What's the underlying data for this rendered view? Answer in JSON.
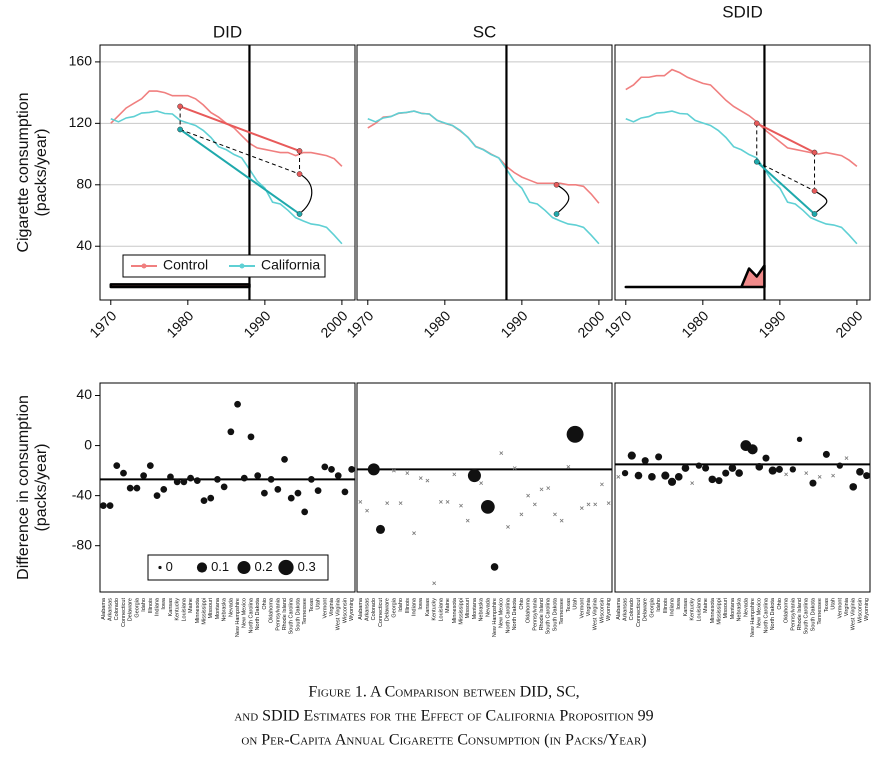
{
  "caption": [
    "Figure 1. A Comparison between DID, SC,",
    "and SDID Estimates for the Effect of California Proposition 99",
    "on Per-Capita Annual Cigarette Consumption (in Packs/Year)"
  ],
  "chart_data": [
    {
      "type": "line",
      "title": "DID",
      "ylabel": [
        "Cigarette consumption",
        "(packs/year)"
      ],
      "x": [
        1970,
        1971,
        1972,
        1973,
        1974,
        1975,
        1976,
        1977,
        1978,
        1979,
        1980,
        1981,
        1982,
        1983,
        1984,
        1985,
        1986,
        1987,
        1988,
        1989,
        1990,
        1991,
        1992,
        1993,
        1994,
        1995,
        1996,
        1997,
        1998,
        1999,
        2000
      ],
      "xlim": [
        1968.6,
        2001.7
      ],
      "xticks": [
        1970,
        1980,
        1990,
        2000
      ],
      "ylim": [
        5,
        171
      ],
      "yticks": [
        40,
        80,
        120,
        160
      ],
      "grid": true,
      "legend": "bottom-left",
      "series": [
        {
          "name": "Control",
          "color": "#f07f7f",
          "values": [
            120,
            125,
            130,
            133,
            136,
            141,
            141,
            140,
            138,
            138,
            138,
            136,
            132,
            127,
            124,
            120,
            117,
            112,
            107,
            104,
            103,
            102,
            101,
            101,
            99,
            101,
            101,
            100,
            99,
            97,
            92
          ]
        },
        {
          "name": "California",
          "color": "#5fd0d4",
          "values": [
            123,
            121,
            123.5,
            124.4,
            126.7,
            127.1,
            128,
            126.4,
            126.1,
            121.9,
            120.2,
            118.6,
            115.4,
            110.8,
            104.8,
            102.8,
            99.7,
            97.5,
            90.1,
            82.4,
            77.8,
            68.7,
            67.5,
            63.4,
            58.6,
            56.4,
            54.5,
            53.8,
            52.3,
            47.2,
            41.6
          ]
        }
      ],
      "event_x": 1988,
      "time_weights": [
        0.053,
        0.053,
        0.053,
        0.053,
        0.053,
        0.053,
        0.053,
        0.053,
        0.053,
        0.053,
        0.053,
        0.053,
        0.053,
        0.053,
        0.053,
        0.053,
        0.053,
        0.053,
        0.053
      ],
      "annotation": {
        "pre_x": 1979,
        "post_x": 1994.5,
        "control_pre": 131,
        "control_post": 102,
        "treated_pre": 116,
        "treated_post": 61,
        "counterfactual": 87
      }
    },
    {
      "type": "line",
      "title": "SC",
      "x": [
        1970,
        1971,
        1972,
        1973,
        1974,
        1975,
        1976,
        1977,
        1978,
        1979,
        1980,
        1981,
        1982,
        1983,
        1984,
        1985,
        1986,
        1987,
        1988,
        1989,
        1990,
        1991,
        1992,
        1993,
        1994,
        1995,
        1996,
        1997,
        1998,
        1999,
        2000
      ],
      "xlim": [
        1968.6,
        2001.7
      ],
      "xticks": [
        1970,
        1980,
        1990,
        2000
      ],
      "ylim": [
        5,
        171
      ],
      "yticks": [
        40,
        80,
        120,
        160
      ],
      "grid": true,
      "series": [
        {
          "color": "#f07f7f",
          "values": [
            117,
            120,
            124,
            124.5,
            126.5,
            127,
            128,
            126.5,
            126,
            122,
            120,
            118.5,
            115,
            111,
            105,
            103,
            100,
            97.5,
            92,
            88,
            85,
            83,
            81,
            81,
            81,
            81,
            80,
            80,
            79,
            74,
            68
          ]
        },
        {
          "color": "#5fd0d4",
          "values": [
            123,
            121,
            123.5,
            124.4,
            126.7,
            127.1,
            128,
            126.4,
            126.1,
            121.9,
            120.2,
            118.6,
            115.4,
            110.8,
            104.8,
            102.8,
            99.7,
            97.5,
            90.1,
            82.4,
            77.8,
            68.7,
            67.5,
            63.4,
            58.6,
            56.4,
            54.5,
            53.8,
            52.3,
            47.2,
            41.6
          ]
        }
      ],
      "event_x": 1988,
      "annotation": {
        "post_x": 1994.5,
        "treated_post": 61,
        "counterfactual": 80
      }
    },
    {
      "type": "line",
      "title": "SDID",
      "x": [
        1970,
        1971,
        1972,
        1973,
        1974,
        1975,
        1976,
        1977,
        1978,
        1979,
        1980,
        1981,
        1982,
        1983,
        1984,
        1985,
        1986,
        1987,
        1988,
        1989,
        1990,
        1991,
        1992,
        1993,
        1994,
        1995,
        1996,
        1997,
        1998,
        1999,
        2000
      ],
      "xlim": [
        1968.6,
        2001.7
      ],
      "xticks": [
        1970,
        1980,
        1990,
        2000
      ],
      "ylim": [
        5,
        171
      ],
      "yticks": [
        40,
        80,
        120,
        160
      ],
      "grid": true,
      "series": [
        {
          "color": "#f07f7f",
          "values": [
            142,
            145,
            150,
            150,
            151,
            151,
            155,
            153,
            150,
            148,
            146,
            145,
            140,
            135,
            131,
            128,
            125,
            121,
            116,
            112,
            108,
            104,
            103,
            102,
            101,
            100,
            101,
            100,
            99,
            96,
            92
          ]
        },
        {
          "color": "#5fd0d4",
          "values": [
            123,
            121,
            123.5,
            124.4,
            126.7,
            127.1,
            128,
            126.4,
            126.1,
            121.9,
            120.2,
            118.6,
            115.4,
            110.8,
            104.8,
            102.8,
            99.7,
            97.5,
            90.1,
            82.4,
            77.8,
            68.7,
            67.5,
            63.4,
            58.6,
            56.4,
            54.5,
            53.8,
            52.3,
            47.2,
            41.6
          ]
        }
      ],
      "event_x": 1988,
      "time_weights": [
        0,
        0,
        0,
        0,
        0,
        0,
        0,
        0,
        0,
        0,
        0,
        0,
        0,
        0,
        0,
        0,
        0.37,
        0.21,
        0.43
      ],
      "annotation": {
        "pre_x": 1987,
        "post_x": 1994.5,
        "control_pre": 120,
        "control_post": 101,
        "treated_pre": 95,
        "treated_post": 61,
        "counterfactual": 76
      }
    },
    {
      "type": "dot",
      "ylabel": [
        "Difference in consumption",
        "(packs/year)"
      ],
      "ylim": [
        -117,
        50
      ],
      "yticks": [
        40,
        0,
        -40,
        -80
      ],
      "categories": [
        "Alabama",
        "Arkansas",
        "Colorado",
        "Connecticut",
        "Delaware",
        "Georgia",
        "Idaho",
        "Illinois",
        "Indiana",
        "Iowa",
        "Kansas",
        "Kentucky",
        "Louisiana",
        "Maine",
        "Minnesota",
        "Mississippi",
        "Missouri",
        "Montana",
        "Nebraska",
        "Nevada",
        "New Hampshire",
        "New Mexico",
        "North Carolina",
        "North Dakota",
        "Ohio",
        "Oklahoma",
        "Pennsylvania",
        "Rhode Island",
        "South Carolina",
        "South Dakota",
        "Tennessee",
        "Texas",
        "Utah",
        "Vermont",
        "Virginia",
        "West Virginia",
        "Wisconsin",
        "Wyoming"
      ],
      "values": [
        -48,
        -48,
        -16,
        -22,
        -34,
        -34,
        -24,
        -16,
        -40,
        -35,
        -25,
        -29,
        -29,
        -26,
        -28,
        -44,
        -42,
        -27,
        -33,
        11,
        33,
        -26,
        7,
        -24,
        -38,
        -27,
        -35,
        -11,
        -42,
        -38,
        -53,
        -27,
        -36,
        -17,
        -19,
        -24,
        -37,
        -19
      ],
      "weights": [
        0.026,
        0.026,
        0.026,
        0.026,
        0.026,
        0.026,
        0.026,
        0.026,
        0.026,
        0.026,
        0.026,
        0.026,
        0.026,
        0.026,
        0.026,
        0.026,
        0.026,
        0.026,
        0.026,
        0.026,
        0.026,
        0.026,
        0.026,
        0.026,
        0.026,
        0.026,
        0.026,
        0.026,
        0.026,
        0.026,
        0.026,
        0.026,
        0.026,
        0.026,
        0.026,
        0.026,
        0.026,
        0.026
      ],
      "estimate": -27,
      "size_legend": [
        0,
        0.1,
        0.2,
        0.3
      ]
    },
    {
      "type": "dot",
      "ylim": [
        -117,
        50
      ],
      "yticks": [
        40,
        0,
        -40,
        -80
      ],
      "zero_marker": "x",
      "categories": [
        "Alabama",
        "Arkansas",
        "Colorado",
        "Connecticut",
        "Delaware",
        "Georgia",
        "Idaho",
        "Illinois",
        "Indiana",
        "Iowa",
        "Kansas",
        "Kentucky",
        "Louisiana",
        "Maine",
        "Minnesota",
        "Mississippi",
        "Missouri",
        "Montana",
        "Nebraska",
        "Nevada",
        "New Hampshire",
        "New Mexico",
        "North Carolina",
        "North Dakota",
        "Ohio",
        "Oklahoma",
        "Pennsylvania",
        "Rhode Island",
        "South Carolina",
        "South Dakota",
        "Tennessee",
        "Texas",
        "Utah",
        "Vermont",
        "Virginia",
        "West Virginia",
        "Wisconsin",
        "Wyoming"
      ],
      "values": [
        -45,
        -52,
        -19,
        -67,
        -46,
        -20,
        -46,
        -22,
        -70,
        -26,
        -28,
        -110,
        -45,
        -45,
        -23,
        -48,
        -60,
        -24,
        -30,
        -49,
        -97,
        -6,
        -65,
        -18,
        -55,
        -40,
        -47,
        -35,
        -34,
        -55,
        -60,
        -17,
        9,
        -50,
        -47,
        -47,
        -31,
        -46
      ],
      "weights": [
        0,
        0,
        0.16,
        0.07,
        0,
        0,
        0,
        0,
        0,
        0,
        0,
        0,
        0,
        0,
        0,
        0,
        0,
        0.2,
        0,
        0.23,
        0.04,
        0,
        0,
        0,
        0,
        0,
        0,
        0,
        0,
        0,
        0,
        0,
        0.39,
        0,
        0,
        0,
        0,
        0
      ],
      "estimate": -19
    },
    {
      "type": "dot",
      "ylim": [
        -117,
        50
      ],
      "yticks": [
        40,
        0,
        -40,
        -80
      ],
      "zero_marker": "x",
      "categories": [
        "Alabama",
        "Arkansas",
        "Colorado",
        "Connecticut",
        "Delaware",
        "Georgia",
        "Idaho",
        "Illinois",
        "Indiana",
        "Iowa",
        "Kansas",
        "Kentucky",
        "Louisiana",
        "Maine",
        "Minnesota",
        "Mississippi",
        "Missouri",
        "Montana",
        "Nebraska",
        "Nevada",
        "New Hampshire",
        "New Mexico",
        "North Carolina",
        "North Dakota",
        "Ohio",
        "Oklahoma",
        "Pennsylvania",
        "Rhode Island",
        "South Carolina",
        "South Dakota",
        "Tennessee",
        "Texas",
        "Utah",
        "Vermont",
        "Virginia",
        "West Virginia",
        "Wisconsin",
        "Wyoming"
      ],
      "values": [
        -25,
        -22,
        -8,
        -24,
        -12,
        -25,
        -9,
        -24,
        -29,
        -25,
        -18,
        -30,
        -16,
        -18,
        -27,
        -28,
        -22,
        -18,
        -22,
        0,
        -3,
        -17,
        -10,
        -20,
        -19,
        -23,
        -19,
        5,
        -22,
        -30,
        -25,
        -7,
        -24,
        -16,
        -10,
        -33,
        -21,
        -24
      ],
      "weights": [
        0,
        0.02,
        0.05,
        0.04,
        0.03,
        0.04,
        0.03,
        0.05,
        0.05,
        0.04,
        0.04,
        0,
        0.02,
        0.03,
        0.04,
        0.03,
        0.03,
        0.04,
        0.04,
        0.12,
        0.1,
        0.04,
        0.03,
        0.05,
        0.03,
        0,
        0.02,
        0.01,
        0,
        0.03,
        0,
        0.03,
        0,
        0.02,
        0,
        0.04,
        0.04,
        0.03
      ],
      "estimate": -15
    }
  ]
}
